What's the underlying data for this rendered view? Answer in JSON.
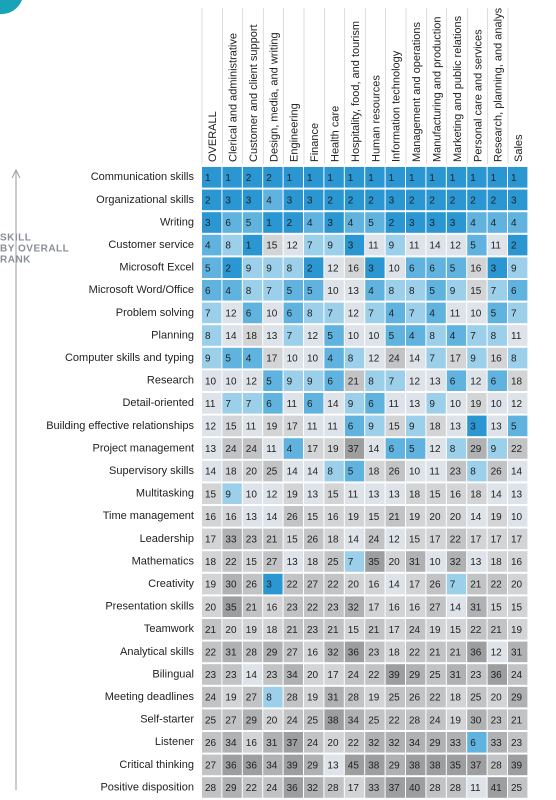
{
  "side_label": [
    "SKILL",
    "BY OVERALL",
    "RANK"
  ],
  "columns": [
    "OVERALL",
    "Clerical and administrative",
    "Customer and client support",
    "Design, media, and writing",
    "Engineering",
    "Finance",
    "Health care",
    "Hospitality, food, and tourism",
    "Human resources",
    "Information technology",
    "Management and operations",
    "Manufacturing and production",
    "Marketing and public relations",
    "Personal care and services",
    "Research, planning, and analys",
    "Sales"
  ],
  "rows": [
    {
      "skill": "Communication skills",
      "ranks": [
        1,
        1,
        2,
        2,
        1,
        1,
        1,
        1,
        1,
        1,
        1,
        1,
        1,
        1,
        1,
        1
      ]
    },
    {
      "skill": "Organizational skills",
      "ranks": [
        2,
        3,
        3,
        4,
        3,
        3,
        2,
        2,
        2,
        3,
        2,
        2,
        2,
        2,
        2,
        3
      ]
    },
    {
      "skill": "Writing",
      "ranks": [
        3,
        6,
        5,
        1,
        2,
        4,
        3,
        4,
        5,
        2,
        3,
        3,
        3,
        4,
        4,
        4
      ]
    },
    {
      "skill": "Customer service",
      "ranks": [
        4,
        8,
        1,
        15,
        12,
        7,
        9,
        3,
        11,
        9,
        11,
        14,
        12,
        5,
        11,
        2
      ]
    },
    {
      "skill": "Microsoft Excel",
      "ranks": [
        5,
        2,
        9,
        9,
        8,
        2,
        12,
        16,
        3,
        10,
        6,
        6,
        5,
        16,
        3,
        9
      ]
    },
    {
      "skill": "Microsoft Word/Office",
      "ranks": [
        6,
        4,
        8,
        7,
        5,
        5,
        10,
        13,
        4,
        8,
        8,
        5,
        9,
        15,
        7,
        6
      ]
    },
    {
      "skill": "Problem solving",
      "ranks": [
        7,
        12,
        6,
        10,
        6,
        8,
        7,
        12,
        7,
        4,
        7,
        4,
        11,
        10,
        5,
        7
      ]
    },
    {
      "skill": "Planning",
      "ranks": [
        8,
        14,
        18,
        13,
        7,
        12,
        5,
        10,
        10,
        5,
        4,
        8,
        4,
        7,
        8,
        11
      ]
    },
    {
      "skill": "Computer skills and typing",
      "ranks": [
        9,
        5,
        4,
        17,
        10,
        10,
        4,
        8,
        12,
        24,
        14,
        7,
        17,
        9,
        16,
        8
      ]
    },
    {
      "skill": "Research",
      "ranks": [
        10,
        10,
        12,
        5,
        9,
        9,
        6,
        21,
        8,
        7,
        12,
        13,
        6,
        12,
        6,
        18
      ]
    },
    {
      "skill": "Detail-oriented",
      "ranks": [
        11,
        7,
        7,
        6,
        11,
        6,
        14,
        9,
        6,
        11,
        13,
        9,
        10,
        19,
        10,
        12
      ]
    },
    {
      "skill": "Building effective relationships",
      "ranks": [
        12,
        15,
        11,
        19,
        17,
        11,
        11,
        6,
        9,
        15,
        9,
        18,
        13,
        3,
        13,
        5
      ]
    },
    {
      "skill": "Project management",
      "ranks": [
        13,
        24,
        24,
        11,
        4,
        17,
        19,
        37,
        14,
        6,
        5,
        12,
        8,
        29,
        9,
        22
      ]
    },
    {
      "skill": "Supervisory skills",
      "ranks": [
        14,
        18,
        20,
        25,
        14,
        14,
        8,
        5,
        18,
        26,
        10,
        11,
        23,
        8,
        26,
        14
      ]
    },
    {
      "skill": "Multitasking",
      "ranks": [
        15,
        9,
        10,
        12,
        19,
        13,
        15,
        11,
        13,
        13,
        18,
        15,
        16,
        18,
        14,
        13
      ]
    },
    {
      "skill": "Time management",
      "ranks": [
        16,
        16,
        13,
        14,
        26,
        15,
        16,
        19,
        15,
        21,
        19,
        20,
        20,
        14,
        19,
        10
      ]
    },
    {
      "skill": "Leadership",
      "ranks": [
        17,
        33,
        23,
        21,
        15,
        26,
        18,
        14,
        24,
        12,
        15,
        17,
        22,
        17,
        17,
        17
      ]
    },
    {
      "skill": "Mathematics",
      "ranks": [
        18,
        22,
        15,
        27,
        13,
        18,
        25,
        7,
        35,
        20,
        31,
        10,
        32,
        13,
        18,
        16
      ]
    },
    {
      "skill": "Creativity",
      "ranks": [
        19,
        30,
        26,
        3,
        22,
        27,
        22,
        20,
        16,
        14,
        17,
        26,
        7,
        21,
        22,
        20
      ]
    },
    {
      "skill": "Presentation skills",
      "ranks": [
        20,
        35,
        21,
        16,
        23,
        22,
        23,
        32,
        17,
        16,
        16,
        27,
        14,
        31,
        15,
        15
      ]
    },
    {
      "skill": "Teamwork",
      "ranks": [
        21,
        20,
        19,
        18,
        21,
        23,
        21,
        15,
        21,
        17,
        24,
        19,
        15,
        22,
        21,
        19
      ]
    },
    {
      "skill": "Analytical skills",
      "ranks": [
        22,
        31,
        28,
        29,
        27,
        16,
        32,
        36,
        23,
        18,
        22,
        21,
        21,
        36,
        12,
        31
      ]
    },
    {
      "skill": "Bilingual",
      "ranks": [
        23,
        23,
        14,
        23,
        34,
        20,
        17,
        24,
        22,
        39,
        29,
        25,
        31,
        23,
        36,
        24
      ]
    },
    {
      "skill": "Meeting deadlines",
      "ranks": [
        24,
        19,
        27,
        8,
        28,
        19,
        31,
        28,
        19,
        25,
        26,
        22,
        18,
        25,
        20,
        29
      ]
    },
    {
      "skill": "Self-starter",
      "ranks": [
        25,
        27,
        29,
        20,
        24,
        25,
        38,
        34,
        25,
        22,
        28,
        24,
        19,
        30,
        23,
        21
      ]
    },
    {
      "skill": "Listener",
      "ranks": [
        26,
        34,
        16,
        31,
        37,
        24,
        20,
        22,
        32,
        32,
        34,
        29,
        33,
        6,
        33,
        23
      ]
    },
    {
      "skill": "Critical thinking",
      "ranks": [
        27,
        36,
        36,
        34,
        39,
        29,
        13,
        45,
        38,
        29,
        38,
        38,
        35,
        37,
        28,
        39
      ]
    },
    {
      "skill": "Positive disposition",
      "ranks": [
        28,
        29,
        22,
        24,
        36,
        32,
        28,
        17,
        33,
        37,
        40,
        28,
        28,
        11,
        41,
        25
      ]
    }
  ]
}
